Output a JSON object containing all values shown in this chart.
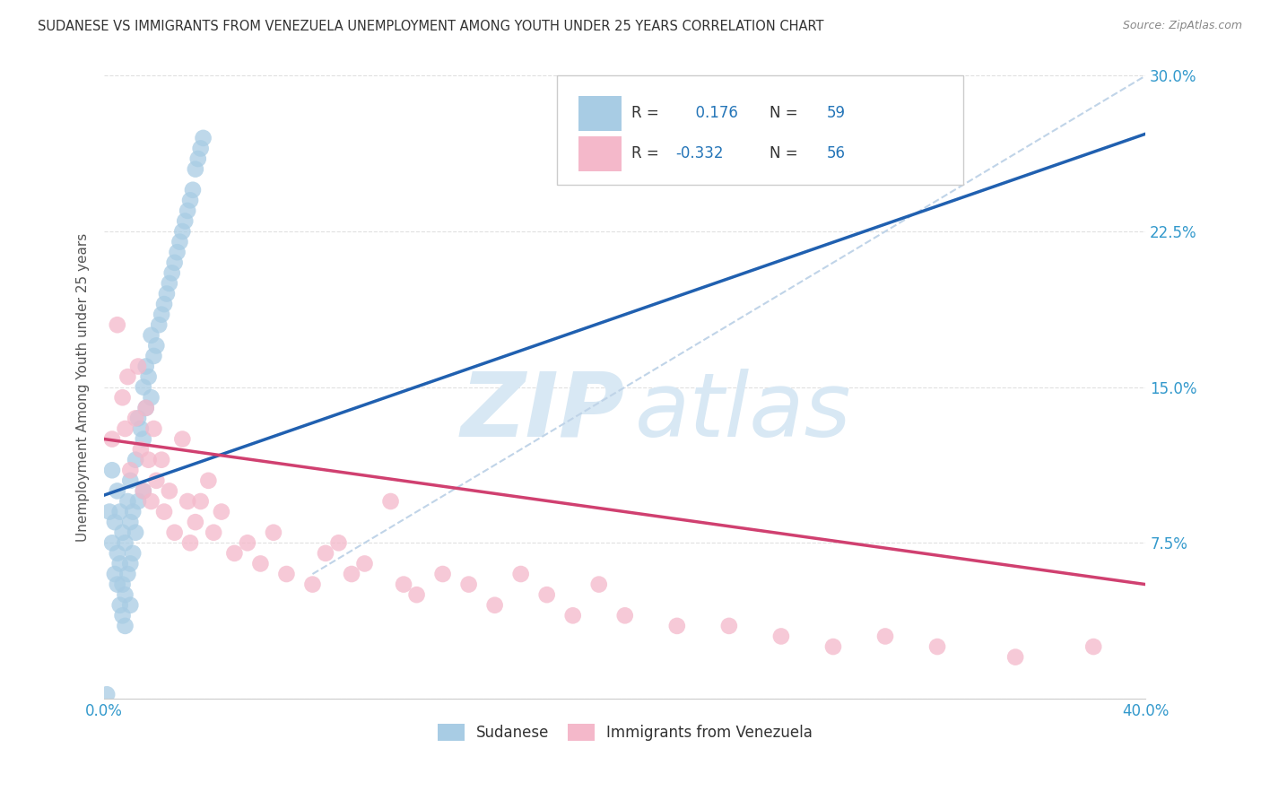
{
  "title": "SUDANESE VS IMMIGRANTS FROM VENEZUELA UNEMPLOYMENT AMONG YOUTH UNDER 25 YEARS CORRELATION CHART",
  "source": "Source: ZipAtlas.com",
  "ylabel": "Unemployment Among Youth under 25 years",
  "xlim": [
    0.0,
    0.4
  ],
  "ylim": [
    0.0,
    0.3
  ],
  "blue_R": 0.176,
  "blue_N": 59,
  "pink_R": -0.332,
  "pink_N": 56,
  "blue_scatter_color": "#a8cce4",
  "pink_scatter_color": "#f4b8ca",
  "blue_line_color": "#2060b0",
  "pink_line_color": "#d04070",
  "dashed_line_color": "#c0d4e8",
  "watermark_zip": "ZIP",
  "watermark_atlas": "atlas",
  "watermark_color": "#d8e8f4",
  "legend_label_blue": "Sudanese",
  "legend_label_pink": "Immigrants from Venezuela",
  "blue_x": [
    0.002,
    0.003,
    0.003,
    0.004,
    0.004,
    0.005,
    0.005,
    0.005,
    0.006,
    0.006,
    0.006,
    0.007,
    0.007,
    0.007,
    0.008,
    0.008,
    0.008,
    0.009,
    0.009,
    0.01,
    0.01,
    0.01,
    0.01,
    0.011,
    0.011,
    0.012,
    0.012,
    0.013,
    0.013,
    0.014,
    0.015,
    0.015,
    0.015,
    0.016,
    0.016,
    0.017,
    0.018,
    0.018,
    0.019,
    0.02,
    0.021,
    0.022,
    0.023,
    0.024,
    0.025,
    0.026,
    0.027,
    0.028,
    0.029,
    0.03,
    0.031,
    0.032,
    0.033,
    0.034,
    0.035,
    0.036,
    0.037,
    0.038,
    0.001
  ],
  "blue_y": [
    0.09,
    0.075,
    0.11,
    0.06,
    0.085,
    0.055,
    0.07,
    0.1,
    0.045,
    0.065,
    0.09,
    0.04,
    0.055,
    0.08,
    0.035,
    0.05,
    0.075,
    0.06,
    0.095,
    0.045,
    0.065,
    0.085,
    0.105,
    0.07,
    0.09,
    0.115,
    0.08,
    0.095,
    0.135,
    0.13,
    0.1,
    0.125,
    0.15,
    0.14,
    0.16,
    0.155,
    0.145,
    0.175,
    0.165,
    0.17,
    0.18,
    0.185,
    0.19,
    0.195,
    0.2,
    0.205,
    0.21,
    0.215,
    0.22,
    0.225,
    0.23,
    0.235,
    0.24,
    0.245,
    0.255,
    0.26,
    0.265,
    0.27,
    0.002
  ],
  "pink_x": [
    0.003,
    0.005,
    0.007,
    0.008,
    0.009,
    0.01,
    0.012,
    0.013,
    0.014,
    0.015,
    0.016,
    0.017,
    0.018,
    0.019,
    0.02,
    0.022,
    0.023,
    0.025,
    0.027,
    0.03,
    0.032,
    0.033,
    0.035,
    0.037,
    0.04,
    0.042,
    0.045,
    0.05,
    0.055,
    0.06,
    0.065,
    0.07,
    0.08,
    0.085,
    0.09,
    0.095,
    0.1,
    0.11,
    0.115,
    0.12,
    0.13,
    0.14,
    0.15,
    0.16,
    0.17,
    0.18,
    0.19,
    0.2,
    0.22,
    0.24,
    0.26,
    0.28,
    0.3,
    0.32,
    0.35,
    0.38
  ],
  "pink_y": [
    0.125,
    0.18,
    0.145,
    0.13,
    0.155,
    0.11,
    0.135,
    0.16,
    0.12,
    0.1,
    0.14,
    0.115,
    0.095,
    0.13,
    0.105,
    0.115,
    0.09,
    0.1,
    0.08,
    0.125,
    0.095,
    0.075,
    0.085,
    0.095,
    0.105,
    0.08,
    0.09,
    0.07,
    0.075,
    0.065,
    0.08,
    0.06,
    0.055,
    0.07,
    0.075,
    0.06,
    0.065,
    0.095,
    0.055,
    0.05,
    0.06,
    0.055,
    0.045,
    0.06,
    0.05,
    0.04,
    0.055,
    0.04,
    0.035,
    0.035,
    0.03,
    0.025,
    0.03,
    0.025,
    0.02,
    0.025
  ],
  "background_color": "#ffffff",
  "grid_color": "#dddddd"
}
